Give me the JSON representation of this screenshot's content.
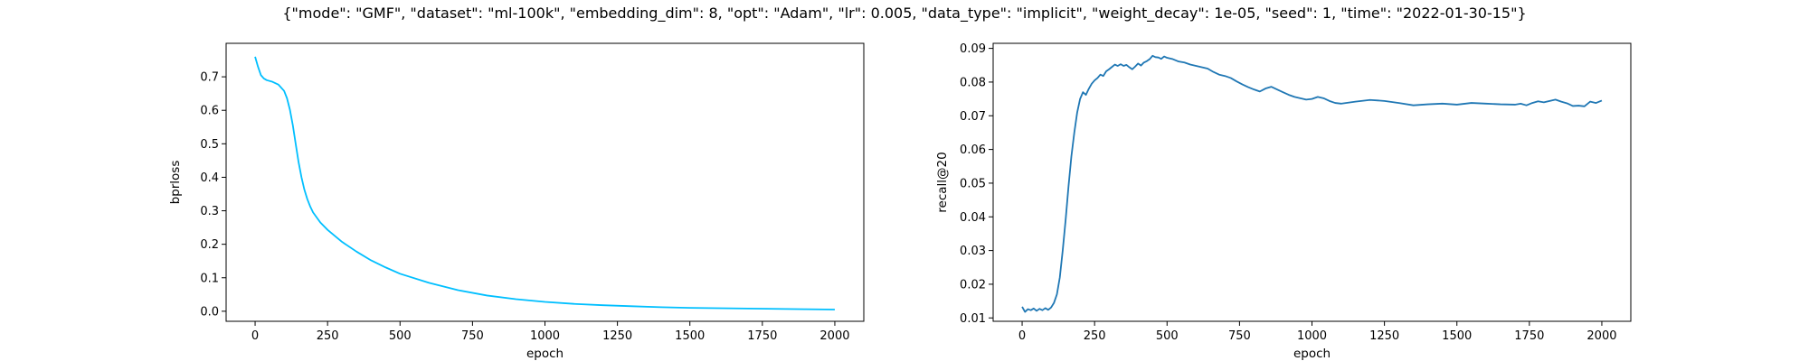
{
  "figure": {
    "title": "{\"mode\": \"GMF\", \"dataset\": \"ml-100k\", \"embedding_dim\": 8, \"opt\": \"Adam\", \"lr\": 0.005, \"data_type\": \"implicit\", \"weight_decay\": 1e-05, \"seed\": 1, \"time\": \"2022-01-30-15\"}"
  },
  "chart_data": [
    {
      "type": "line",
      "xlabel": "epoch",
      "ylabel": "bprloss",
      "xlim": [
        -100,
        2100
      ],
      "ylim": [
        -0.03,
        0.8
      ],
      "xticks": [
        0,
        250,
        500,
        750,
        1000,
        1250,
        1500,
        1750,
        2000
      ],
      "yticks": [
        0.0,
        0.1,
        0.2,
        0.3,
        0.4,
        0.5,
        0.6,
        0.7
      ],
      "grid": false,
      "color": "#00bfff",
      "x": [
        0,
        10,
        20,
        30,
        40,
        60,
        80,
        100,
        110,
        120,
        130,
        140,
        150,
        160,
        170,
        180,
        190,
        200,
        225,
        250,
        300,
        350,
        400,
        450,
        500,
        600,
        700,
        800,
        900,
        1000,
        1100,
        1200,
        1300,
        1400,
        1500,
        1600,
        1700,
        1800,
        1900,
        2000
      ],
      "y": [
        0.76,
        0.73,
        0.705,
        0.695,
        0.69,
        0.685,
        0.677,
        0.658,
        0.636,
        0.602,
        0.556,
        0.5,
        0.445,
        0.4,
        0.363,
        0.335,
        0.313,
        0.295,
        0.265,
        0.243,
        0.207,
        0.178,
        0.152,
        0.131,
        0.112,
        0.085,
        0.063,
        0.047,
        0.036,
        0.028,
        0.022,
        0.018,
        0.015,
        0.012,
        0.01,
        0.009,
        0.008,
        0.007,
        0.006,
        0.005
      ]
    },
    {
      "type": "line",
      "xlabel": "epoch",
      "ylabel": "recall@20",
      "xlim": [
        -100,
        2100
      ],
      "ylim": [
        0.009,
        0.0915
      ],
      "xticks": [
        0,
        250,
        500,
        750,
        1000,
        1250,
        1500,
        1750,
        2000
      ],
      "yticks": [
        0.01,
        0.02,
        0.03,
        0.04,
        0.05,
        0.06,
        0.07,
        0.08,
        0.09
      ],
      "grid": false,
      "color": "#1f77b4",
      "x": [
        0,
        10,
        20,
        30,
        40,
        50,
        60,
        70,
        80,
        90,
        100,
        110,
        120,
        130,
        140,
        150,
        160,
        170,
        180,
        190,
        200,
        210,
        220,
        230,
        240,
        250,
        260,
        270,
        280,
        290,
        300,
        310,
        320,
        330,
        340,
        350,
        360,
        370,
        380,
        390,
        400,
        410,
        420,
        430,
        440,
        450,
        460,
        470,
        480,
        490,
        500,
        520,
        540,
        560,
        580,
        600,
        620,
        640,
        660,
        680,
        700,
        720,
        740,
        760,
        780,
        800,
        820,
        840,
        860,
        880,
        900,
        920,
        940,
        960,
        980,
        1000,
        1020,
        1040,
        1060,
        1080,
        1100,
        1150,
        1200,
        1250,
        1300,
        1350,
        1400,
        1450,
        1500,
        1550,
        1600,
        1650,
        1700,
        1720,
        1740,
        1760,
        1780,
        1800,
        1820,
        1840,
        1860,
        1880,
        1900,
        1920,
        1940,
        1960,
        1980,
        2000
      ],
      "y": [
        0.0133,
        0.0118,
        0.0126,
        0.0123,
        0.0128,
        0.0121,
        0.0127,
        0.0123,
        0.0129,
        0.0124,
        0.0131,
        0.0145,
        0.017,
        0.022,
        0.03,
        0.039,
        0.049,
        0.058,
        0.065,
        0.071,
        0.075,
        0.077,
        0.0762,
        0.078,
        0.0795,
        0.0805,
        0.0812,
        0.0822,
        0.0818,
        0.0832,
        0.0838,
        0.0845,
        0.0852,
        0.0848,
        0.0853,
        0.0848,
        0.0851,
        0.0844,
        0.0838,
        0.0846,
        0.0855,
        0.0849,
        0.0858,
        0.0862,
        0.0868,
        0.0878,
        0.0874,
        0.0873,
        0.0869,
        0.0876,
        0.0872,
        0.0868,
        0.0861,
        0.0858,
        0.0852,
        0.0848,
        0.0844,
        0.084,
        0.083,
        0.0822,
        0.0818,
        0.0812,
        0.0802,
        0.0793,
        0.0785,
        0.0778,
        0.0772,
        0.0781,
        0.0786,
        0.0778,
        0.077,
        0.0762,
        0.0756,
        0.0752,
        0.0748,
        0.075,
        0.0756,
        0.0752,
        0.0744,
        0.0738,
        0.0736,
        0.0742,
        0.0747,
        0.0744,
        0.0738,
        0.0731,
        0.0734,
        0.0736,
        0.0733,
        0.0738,
        0.0736,
        0.0734,
        0.0733,
        0.0736,
        0.0731,
        0.0738,
        0.0743,
        0.074,
        0.0744,
        0.0748,
        0.0742,
        0.0737,
        0.0729,
        0.073,
        0.0728,
        0.0742,
        0.0738,
        0.0745
      ]
    }
  ]
}
